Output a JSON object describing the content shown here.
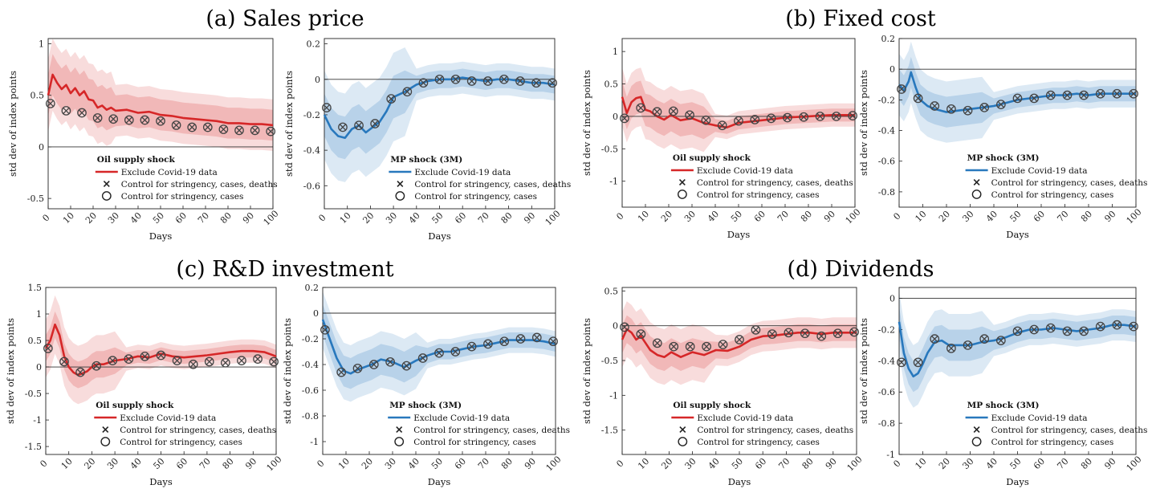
{
  "panel_titles": [
    "(a) Sales price",
    "(b) Fixed cost",
    "(c) R&D investment",
    "(d) Dividends"
  ],
  "legend": {
    "line": "Exclude Covid-19 data",
    "cross": "Control for stringency, cases, deaths",
    "circle": "Control for stringency, cases"
  },
  "colors": {
    "oil": "#d62728",
    "mp": "#2878bd",
    "marker": "#444444"
  },
  "chart_data": [
    {
      "type": "line",
      "panel": "(a) Sales price",
      "shock": "Oil supply shock",
      "color": "oil",
      "xlabel": "Days",
      "ylabel": "std dev of index points",
      "xlim": [
        0,
        100
      ],
      "ylim": [
        -0.6,
        1.05
      ],
      "xticks": [
        0,
        10,
        20,
        30,
        40,
        50,
        60,
        70,
        80,
        90,
        100
      ],
      "yticks": [
        -0.5,
        0,
        0.5,
        1
      ],
      "x": [
        0,
        2,
        4,
        6,
        8,
        10,
        12,
        14,
        16,
        18,
        20,
        22,
        24,
        26,
        28,
        30,
        35,
        40,
        45,
        50,
        55,
        60,
        65,
        70,
        75,
        80,
        85,
        90,
        95,
        100
      ],
      "y": [
        0.5,
        0.7,
        0.62,
        0.56,
        0.6,
        0.52,
        0.57,
        0.5,
        0.54,
        0.46,
        0.45,
        0.38,
        0.4,
        0.36,
        0.38,
        0.35,
        0.36,
        0.33,
        0.34,
        0.31,
        0.3,
        0.28,
        0.27,
        0.26,
        0.25,
        0.23,
        0.23,
        0.22,
        0.22,
        0.21
      ],
      "band_inner": [
        0.2,
        0.15
      ],
      "band_outer": [
        0.35,
        0.25
      ],
      "markers_x": [
        1,
        8,
        15,
        22,
        29,
        36,
        43,
        50,
        57,
        64,
        71,
        78,
        85,
        92,
        99
      ],
      "markers_y": [
        0.42,
        0.35,
        0.33,
        0.28,
        0.27,
        0.26,
        0.26,
        0.25,
        0.21,
        0.19,
        0.19,
        0.17,
        0.16,
        0.16,
        0.15
      ]
    },
    {
      "type": "line",
      "panel": "(a) Sales price",
      "shock": "MP shock (3M)",
      "color": "mp",
      "xlabel": "Days",
      "ylabel": "std dev of index points",
      "xlim": [
        0,
        100
      ],
      "ylim": [
        -0.73,
        0.23
      ],
      "xticks": [
        0,
        10,
        20,
        30,
        40,
        50,
        60,
        70,
        80,
        90,
        100
      ],
      "yticks": [
        -0.6,
        -0.4,
        -0.2,
        0,
        0.2
      ],
      "x": [
        0,
        3,
        6,
        9,
        12,
        15,
        18,
        21,
        24,
        27,
        30,
        35,
        40,
        45,
        50,
        55,
        60,
        65,
        70,
        75,
        80,
        85,
        90,
        95,
        100
      ],
      "y": [
        -0.2,
        -0.28,
        -0.32,
        -0.33,
        -0.28,
        -0.26,
        -0.3,
        -0.27,
        -0.24,
        -0.18,
        -0.1,
        -0.07,
        -0.03,
        -0.01,
        0.0,
        0.0,
        0.01,
        0.0,
        -0.01,
        0.0,
        0.0,
        -0.01,
        -0.02,
        -0.02,
        -0.03
      ],
      "band_inner": [
        0.12,
        0.05
      ],
      "band_outer": [
        0.25,
        0.09
      ],
      "markers_x": [
        1,
        8,
        15,
        22,
        29,
        36,
        43,
        50,
        57,
        64,
        71,
        78,
        85,
        92,
        99
      ],
      "markers_y": [
        -0.16,
        -0.27,
        -0.26,
        -0.25,
        -0.11,
        -0.07,
        -0.02,
        0.0,
        0.0,
        -0.01,
        -0.01,
        0.0,
        -0.01,
        -0.02,
        -0.02
      ]
    },
    {
      "type": "line",
      "panel": "(b) Fixed cost",
      "shock": "Oil supply shock",
      "color": "oil",
      "xlabel": "Days",
      "ylabel": "std dev of index points",
      "xlim": [
        0,
        100
      ],
      "ylim": [
        -1.4,
        1.2
      ],
      "xticks": [
        0,
        10,
        20,
        30,
        40,
        50,
        60,
        70,
        80,
        90,
        100
      ],
      "yticks": [
        -1,
        -0.5,
        0,
        0.5,
        1
      ],
      "x": [
        0,
        2,
        4,
        6,
        8,
        10,
        12,
        15,
        18,
        21,
        25,
        30,
        35,
        40,
        45,
        50,
        55,
        60,
        65,
        70,
        75,
        80,
        85,
        90,
        95,
        100
      ],
      "y": [
        0.3,
        0.05,
        0.22,
        0.28,
        0.3,
        0.1,
        0.08,
        0.0,
        -0.05,
        0.02,
        -0.06,
        -0.03,
        -0.1,
        -0.14,
        -0.17,
        -0.1,
        -0.08,
        -0.06,
        -0.04,
        -0.02,
        -0.01,
        0.0,
        0.01,
        0.02,
        0.02,
        0.02
      ],
      "band_inner": [
        0.25,
        0.1
      ],
      "band_outer": [
        0.45,
        0.18
      ],
      "markers_x": [
        1,
        8,
        15,
        22,
        29,
        36,
        43,
        50,
        57,
        64,
        71,
        78,
        85,
        92,
        99
      ],
      "markers_y": [
        -0.03,
        0.13,
        0.07,
        0.08,
        0.02,
        -0.06,
        -0.14,
        -0.07,
        -0.05,
        -0.03,
        -0.02,
        -0.01,
        0.0,
        0.0,
        0.01
      ]
    },
    {
      "type": "line",
      "panel": "(b) Fixed cost",
      "shock": "MP shock (3M)",
      "color": "mp",
      "xlabel": "Days",
      "ylabel": "std dev of index points",
      "xlim": [
        0,
        100
      ],
      "ylim": [
        -0.9,
        0.2
      ],
      "xticks": [
        0,
        10,
        20,
        30,
        40,
        50,
        60,
        70,
        80,
        90,
        100
      ],
      "yticks": [
        -0.8,
        -0.6,
        -0.4,
        -0.2,
        0,
        0.2
      ],
      "x": [
        0,
        2,
        4,
        5,
        7,
        9,
        12,
        15,
        20,
        25,
        30,
        35,
        40,
        45,
        50,
        55,
        60,
        65,
        70,
        75,
        80,
        85,
        90,
        95,
        100
      ],
      "y": [
        -0.1,
        -0.14,
        -0.08,
        -0.02,
        -0.12,
        -0.2,
        -0.24,
        -0.26,
        -0.28,
        -0.27,
        -0.26,
        -0.25,
        -0.24,
        -0.22,
        -0.2,
        -0.19,
        -0.18,
        -0.17,
        -0.17,
        -0.16,
        -0.17,
        -0.16,
        -0.16,
        -0.16,
        -0.16
      ],
      "band_inner": [
        0.1,
        0.05
      ],
      "band_outer": [
        0.2,
        0.09
      ],
      "markers_x": [
        1,
        8,
        15,
        22,
        29,
        36,
        43,
        50,
        57,
        64,
        71,
        78,
        85,
        92,
        99
      ],
      "markers_y": [
        -0.13,
        -0.19,
        -0.24,
        -0.26,
        -0.27,
        -0.25,
        -0.23,
        -0.19,
        -0.19,
        -0.17,
        -0.17,
        -0.17,
        -0.16,
        -0.16,
        -0.16
      ]
    },
    {
      "type": "line",
      "panel": "(c) R&D investment",
      "shock": "Oil supply shock",
      "color": "oil",
      "xlabel": "Days",
      "ylabel": "std dev of index points",
      "xlim": [
        0,
        100
      ],
      "ylim": [
        -1.65,
        1.5
      ],
      "xticks": [
        0,
        10,
        20,
        30,
        40,
        50,
        60,
        70,
        80,
        90,
        100
      ],
      "yticks": [
        -1.5,
        -1,
        -0.5,
        0,
        0.5,
        1,
        1.5
      ],
      "x": [
        0,
        2,
        4,
        6,
        8,
        10,
        12,
        14,
        16,
        18,
        20,
        22,
        25,
        30,
        35,
        40,
        45,
        50,
        55,
        60,
        65,
        70,
        75,
        80,
        85,
        90,
        95,
        100
      ],
      "y": [
        0.35,
        0.5,
        0.8,
        0.6,
        0.2,
        0.0,
        -0.1,
        -0.15,
        -0.12,
        -0.08,
        0.0,
        0.05,
        0.05,
        0.12,
        0.15,
        0.2,
        0.18,
        0.25,
        0.2,
        0.18,
        0.2,
        0.22,
        0.25,
        0.28,
        0.3,
        0.3,
        0.28,
        0.2
      ],
      "band_inner": [
        0.25,
        0.12
      ],
      "band_outer": [
        0.55,
        0.22
      ],
      "markers_x": [
        1,
        8,
        15,
        22,
        29,
        36,
        43,
        50,
        57,
        64,
        71,
        78,
        85,
        92,
        99
      ],
      "markers_y": [
        0.35,
        0.1,
        -0.1,
        0.02,
        0.12,
        0.15,
        0.2,
        0.22,
        0.12,
        0.05,
        0.1,
        0.08,
        0.12,
        0.15,
        0.1
      ]
    },
    {
      "type": "line",
      "panel": "(c) R&D investment",
      "shock": "MP shock (3M)",
      "color": "mp",
      "xlabel": "Days",
      "ylabel": "std dev of index points",
      "xlim": [
        0,
        100
      ],
      "ylim": [
        -1.1,
        0.2
      ],
      "xticks": [
        0,
        10,
        20,
        30,
        40,
        50,
        60,
        70,
        80,
        90,
        100
      ],
      "yticks": [
        -1,
        -0.8,
        -0.6,
        -0.4,
        -0.2,
        0,
        0.2
      ],
      "x": [
        0,
        3,
        6,
        9,
        12,
        15,
        18,
        21,
        25,
        30,
        35,
        40,
        45,
        50,
        55,
        60,
        65,
        70,
        75,
        80,
        85,
        90,
        95,
        100
      ],
      "y": [
        -0.05,
        -0.2,
        -0.35,
        -0.45,
        -0.47,
        -0.44,
        -0.42,
        -0.4,
        -0.36,
        -0.38,
        -0.42,
        -0.37,
        -0.33,
        -0.3,
        -0.3,
        -0.28,
        -0.26,
        -0.25,
        -0.23,
        -0.21,
        -0.21,
        -0.21,
        -0.22,
        -0.24
      ],
      "band_inner": [
        0.12,
        0.06
      ],
      "band_outer": [
        0.22,
        0.1
      ],
      "markers_x": [
        1,
        8,
        15,
        22,
        29,
        36,
        43,
        50,
        57,
        64,
        71,
        78,
        85,
        92,
        99
      ],
      "markers_y": [
        -0.13,
        -0.46,
        -0.43,
        -0.4,
        -0.38,
        -0.41,
        -0.35,
        -0.31,
        -0.3,
        -0.26,
        -0.24,
        -0.22,
        -0.2,
        -0.19,
        -0.22
      ]
    },
    {
      "type": "line",
      "panel": "(d) Dividends",
      "shock": "Oil supply shock",
      "color": "oil",
      "xlabel": "Days",
      "ylabel": "std dev of index points",
      "xlim": [
        0,
        100
      ],
      "ylim": [
        -1.85,
        0.55
      ],
      "xticks": [
        0,
        10,
        20,
        30,
        40,
        50,
        60,
        70,
        80,
        90,
        100
      ],
      "yticks": [
        -1.5,
        -1,
        -0.5,
        0,
        0.5
      ],
      "x": [
        0,
        2,
        4,
        6,
        8,
        10,
        12,
        15,
        18,
        21,
        25,
        30,
        35,
        40,
        45,
        50,
        55,
        60,
        65,
        70,
        75,
        80,
        85,
        90,
        95,
        100
      ],
      "y": [
        -0.2,
        -0.05,
        -0.1,
        -0.2,
        -0.15,
        -0.25,
        -0.35,
        -0.42,
        -0.45,
        -0.38,
        -0.45,
        -0.38,
        -0.42,
        -0.35,
        -0.36,
        -0.3,
        -0.2,
        -0.15,
        -0.14,
        -0.12,
        -0.1,
        -0.1,
        -0.12,
        -0.1,
        -0.1,
        -0.1
      ],
      "band_inner": [
        0.2,
        0.12
      ],
      "band_outer": [
        0.4,
        0.22
      ],
      "markers_x": [
        1,
        8,
        15,
        22,
        29,
        36,
        43,
        50,
        57,
        64,
        71,
        78,
        85,
        92,
        99
      ],
      "markers_y": [
        -0.02,
        -0.12,
        -0.25,
        -0.3,
        -0.3,
        -0.3,
        -0.27,
        -0.2,
        -0.06,
        -0.12,
        -0.1,
        -0.11,
        -0.15,
        -0.11,
        -0.09
      ]
    },
    {
      "type": "line",
      "panel": "(d) Dividends",
      "shock": "MP shock (3M)",
      "color": "mp",
      "xlabel": "Days",
      "ylabel": "std dev of index points",
      "xlim": [
        0,
        100
      ],
      "ylim": [
        -1.0,
        0.07
      ],
      "xticks": [
        0,
        10,
        20,
        30,
        40,
        50,
        60,
        70,
        80,
        90,
        100
      ],
      "yticks": [
        -1,
        -0.8,
        -0.6,
        -0.4,
        -0.2,
        0
      ],
      "x": [
        0,
        2,
        4,
        6,
        8,
        10,
        12,
        15,
        18,
        21,
        25,
        30,
        35,
        40,
        45,
        50,
        55,
        60,
        65,
        70,
        75,
        80,
        85,
        90,
        95,
        100
      ],
      "y": [
        -0.15,
        -0.35,
        -0.45,
        -0.5,
        -0.48,
        -0.42,
        -0.35,
        -0.28,
        -0.27,
        -0.3,
        -0.3,
        -0.3,
        -0.28,
        -0.27,
        -0.25,
        -0.22,
        -0.2,
        -0.2,
        -0.19,
        -0.2,
        -0.21,
        -0.2,
        -0.19,
        -0.17,
        -0.17,
        -0.18
      ],
      "band_inner": [
        0.1,
        0.06
      ],
      "band_outer": [
        0.2,
        0.1
      ],
      "markers_x": [
        1,
        8,
        15,
        22,
        29,
        36,
        43,
        50,
        57,
        64,
        71,
        78,
        85,
        92,
        99
      ],
      "markers_y": [
        -0.41,
        -0.41,
        -0.26,
        -0.32,
        -0.3,
        -0.26,
        -0.27,
        -0.21,
        -0.2,
        -0.19,
        -0.21,
        -0.21,
        -0.18,
        -0.17,
        -0.18
      ]
    }
  ]
}
